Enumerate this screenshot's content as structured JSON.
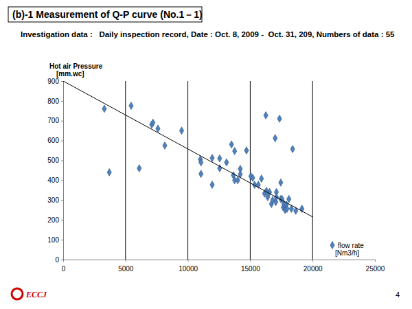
{
  "chart_data": {
    "type": "scatter",
    "title": "(b)-1 Measurement of Q-P curve (No.1－1)",
    "subtitle": "Investigation data :   Daily inspection record, Date : Oct. 8, 2009 -  Oct. 31, 209, Numbers of data : 55",
    "y_label": "Hot air Pressure [mm.wc]",
    "xlim": [
      0,
      25000
    ],
    "xticks": [
      0,
      5000,
      10000,
      15000,
      20000,
      25000
    ],
    "ylim": [
      0,
      900
    ],
    "yticks": [
      0,
      100,
      200,
      300,
      400,
      500,
      600,
      700,
      800,
      900
    ],
    "grid": "x",
    "legend": "bottom-right",
    "series": [
      {
        "name": "flow rate [Nm3/h]",
        "type": "scatter",
        "marker": "diamond",
        "color": "#4f81bd",
        "x": [
          3300,
          3700,
          5450,
          6100,
          7100,
          7200,
          7600,
          8150,
          9500,
          11000,
          11050,
          11050,
          11950,
          11950,
          12550,
          12550,
          13100,
          13500,
          13650,
          13750,
          13750,
          14000,
          14200,
          14200,
          14700,
          15050,
          15200,
          15350,
          15650,
          15900,
          16150,
          16250,
          16300,
          16400,
          16550,
          16700,
          16800,
          17000,
          17050,
          17100,
          17100,
          17350,
          17450,
          17450,
          17550,
          17650,
          17700,
          17800,
          17900,
          17950,
          18100,
          18300,
          18400,
          18650,
          19150
        ],
        "values": [
          760,
          440,
          775,
          460,
          680,
          690,
          660,
          575,
          650,
          505,
          490,
          432,
          512,
          377,
          510,
          460,
          490,
          580,
          425,
          547,
          400,
          400,
          457,
          430,
          550,
          420,
          412,
          377,
          377,
          408,
          333,
          727,
          346,
          315,
          340,
          280,
          300,
          612,
          290,
          340,
          315,
          710,
          388,
          305,
          305,
          263,
          280,
          250,
          277,
          256,
          305,
          256,
          557,
          246,
          256
        ]
      },
      {
        "type": "line",
        "line_style": "solid",
        "color": "#000000",
        "x": [
          0,
          20000
        ],
        "values": [
          900,
          215
        ]
      }
    ]
  },
  "footer": {
    "logo": "ECCJ",
    "page": 4
  }
}
